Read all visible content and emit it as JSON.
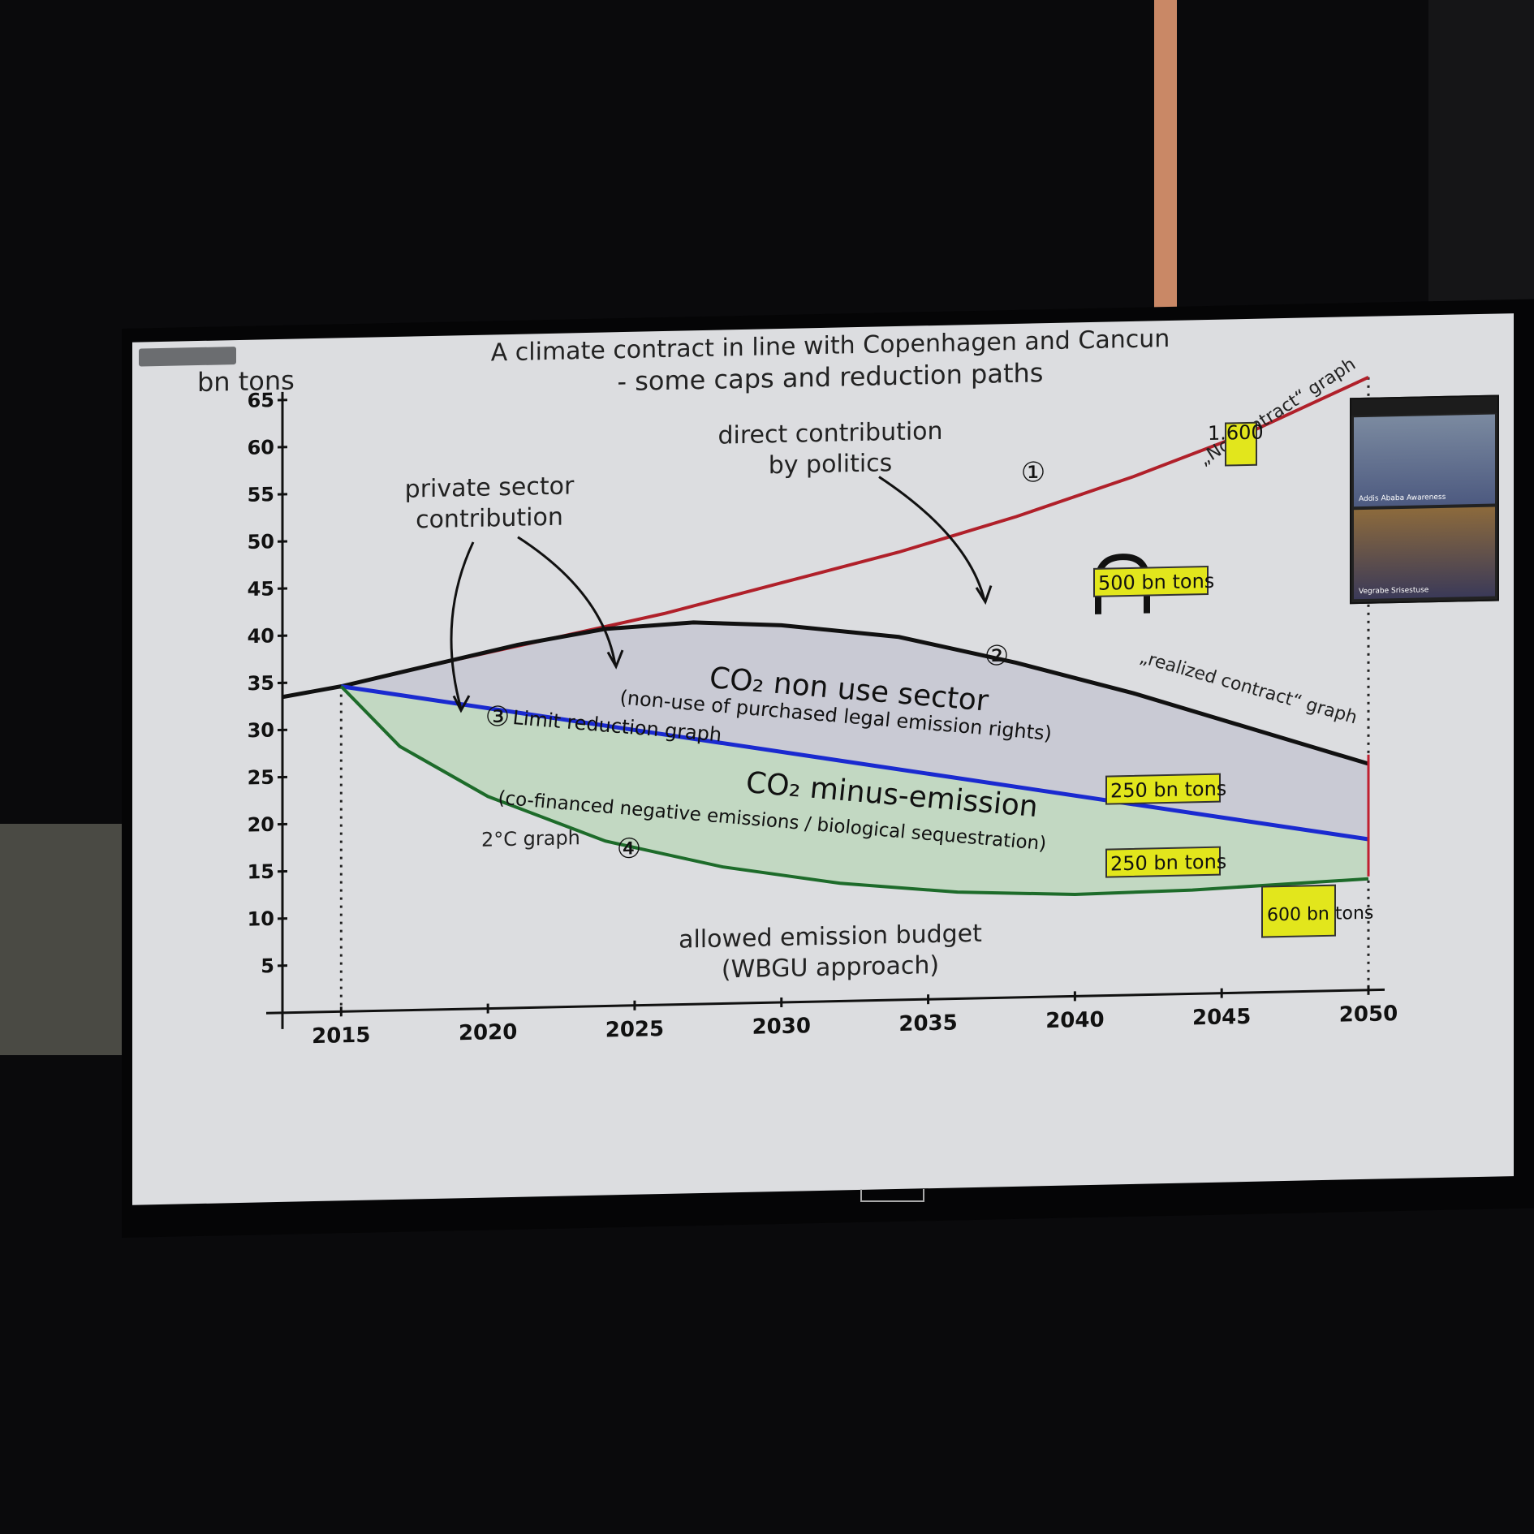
{
  "chart_data": {
    "type": "line",
    "title_line1": "A climate contract in line with Copenhagen and Cancun",
    "title_line2": "- some caps and reduction paths",
    "ylabel": "bn tons",
    "ylim": [
      0,
      65
    ],
    "xlim": [
      2013,
      2050
    ],
    "y_ticks": [
      "5",
      "10",
      "15",
      "20",
      "25",
      "30",
      "35",
      "40",
      "45",
      "50",
      "55",
      "60",
      "65"
    ],
    "x_ticks": [
      "2015",
      "2020",
      "2025",
      "2030",
      "2035",
      "2040",
      "2045",
      "2050"
    ],
    "series": [
      {
        "name": "„No contract“ graph",
        "color": "#b0202a",
        "x": [
          2018,
          2022,
          2026,
          2030,
          2034,
          2038,
          2042,
          2046,
          2050
        ],
        "y": [
          36.5,
          39,
          41.5,
          44.5,
          47.5,
          51,
          55,
          59.5,
          65
        ]
      },
      {
        "name": "„realized contract“ graph",
        "color": "#111111",
        "x": [
          2013,
          2015,
          2018,
          2021,
          2024,
          2027,
          2030,
          2034,
          2038,
          2042,
          2046,
          2050
        ],
        "y": [
          33.5,
          34.5,
          36.5,
          38.5,
          40,
          40.5,
          40,
          38.5,
          35.5,
          32,
          28,
          24
        ]
      },
      {
        "name": "Limit reduction graph",
        "color": "#1a2ad0",
        "x": [
          2015,
          2050
        ],
        "y": [
          34.5,
          16
        ]
      },
      {
        "name": "2°C graph",
        "color": "#1d6b2a",
        "x": [
          2015,
          2017,
          2020,
          2024,
          2028,
          2032,
          2036,
          2040,
          2044,
          2050
        ],
        "y": [
          34.5,
          28,
          22.5,
          17.5,
          14.5,
          12.5,
          11.3,
          10.8,
          11,
          11.8
        ]
      }
    ],
    "labels": {
      "private_sector": [
        "private sector",
        "contribution"
      ],
      "politics": [
        "direct contribution",
        "by politics"
      ],
      "non_use_title": "CO₂ non use sector",
      "non_use_sub": "(non-use of purchased legal emission rights)",
      "minus_title": "CO₂ minus-emission",
      "minus_sub": "(co-financed negative emissions / biological sequestration)",
      "budget": [
        "allowed emission budget",
        "(WBGU approach)"
      ],
      "markers": [
        "①",
        "②",
        "③",
        "④"
      ]
    },
    "boxes": [
      "1.600",
      "500 bn tons",
      "250 bn tons",
      "250 bn tons",
      "600 bn tons"
    ],
    "colors": {
      "non_use_fill": "#c9cad4",
      "minus_fill": "#c2d8c2",
      "box_fill": "#e2e61c"
    }
  },
  "video": {
    "top_name": "Addis Ababa Awareness",
    "bottom_name": "Vegrabe Srisestuse"
  }
}
